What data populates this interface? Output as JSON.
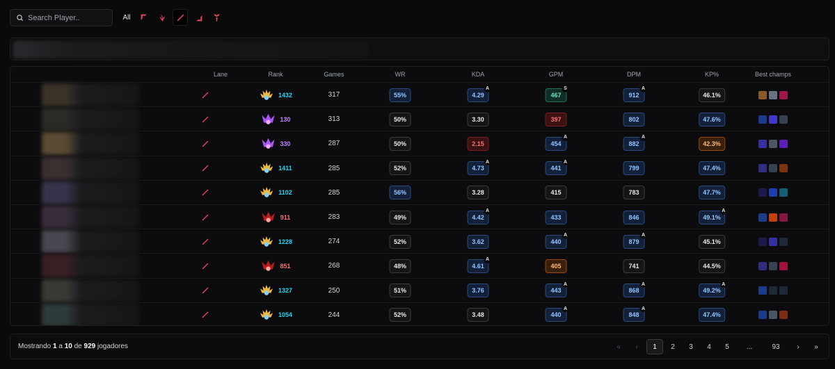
{
  "search": {
    "placeholder": "Search Player.."
  },
  "filters": {
    "all_label": "All",
    "lanes": [
      "top-lane-icon",
      "jungle-icon",
      "mid-lane-icon",
      "bot-lane-icon",
      "support-icon"
    ]
  },
  "colors": {
    "lane_accent": "#e0455b",
    "cyan_rank": "#22d3ee",
    "purple_rank": "#c084fc",
    "red_rank": "#f87171"
  },
  "table": {
    "headers": {
      "lane": "Lane",
      "rank": "Rank",
      "games": "Games",
      "wr": "WR",
      "kda": "KDA",
      "gpm": "GPM",
      "dpm": "DPM",
      "kp": "KP%",
      "champs": "Best champs"
    },
    "rows": [
      {
        "rank_tier": "challenger",
        "rank_lp": "1432",
        "games": "317",
        "wr": "55%",
        "wr_style": "blue",
        "kda": "4.29",
        "kda_style": "blue",
        "kda_grade": "A",
        "gpm": "467",
        "gpm_style": "green",
        "gpm_grade": "S",
        "dpm": "912",
        "dpm_style": "blue",
        "dpm_grade": "A",
        "kp": "46.1%",
        "kp_style": "",
        "kp_grade": ""
      },
      {
        "rank_tier": "master",
        "rank_lp": "130",
        "games": "313",
        "wr": "50%",
        "wr_style": "",
        "kda": "3.30",
        "kda_style": "",
        "kda_grade": "",
        "gpm": "397",
        "gpm_style": "red",
        "gpm_grade": "",
        "dpm": "802",
        "dpm_style": "blue",
        "dpm_grade": "",
        "kp": "47.6%",
        "kp_style": "blue",
        "kp_grade": ""
      },
      {
        "rank_tier": "master",
        "rank_lp": "330",
        "games": "287",
        "wr": "50%",
        "wr_style": "",
        "kda": "2.15",
        "kda_style": "red",
        "kda_grade": "",
        "gpm": "454",
        "gpm_style": "blue",
        "gpm_grade": "A",
        "dpm": "882",
        "dpm_style": "blue",
        "dpm_grade": "A",
        "kp": "42.3%",
        "kp_style": "orange",
        "kp_grade": ""
      },
      {
        "rank_tier": "challenger",
        "rank_lp": "1411",
        "games": "285",
        "wr": "52%",
        "wr_style": "",
        "kda": "4.73",
        "kda_style": "blue",
        "kda_grade": "A",
        "gpm": "441",
        "gpm_style": "blue",
        "gpm_grade": "A",
        "dpm": "799",
        "dpm_style": "blue",
        "dpm_grade": "",
        "kp": "47.4%",
        "kp_style": "blue",
        "kp_grade": ""
      },
      {
        "rank_tier": "challenger",
        "rank_lp": "1102",
        "games": "285",
        "wr": "56%",
        "wr_style": "blue",
        "kda": "3.28",
        "kda_style": "",
        "kda_grade": "",
        "gpm": "415",
        "gpm_style": "",
        "gpm_grade": "",
        "dpm": "783",
        "dpm_style": "",
        "dpm_grade": "",
        "kp": "47.7%",
        "kp_style": "blue",
        "kp_grade": ""
      },
      {
        "rank_tier": "grandmaster",
        "rank_lp": "911",
        "games": "283",
        "wr": "49%",
        "wr_style": "",
        "kda": "4.42",
        "kda_style": "blue",
        "kda_grade": "A",
        "gpm": "433",
        "gpm_style": "blue",
        "gpm_grade": "",
        "dpm": "846",
        "dpm_style": "blue",
        "dpm_grade": "",
        "kp": "49.1%",
        "kp_style": "blue",
        "kp_grade": "A"
      },
      {
        "rank_tier": "challenger",
        "rank_lp": "1228",
        "games": "274",
        "wr": "52%",
        "wr_style": "",
        "kda": "3.62",
        "kda_style": "blue",
        "kda_grade": "",
        "gpm": "440",
        "gpm_style": "blue",
        "gpm_grade": "A",
        "dpm": "879",
        "dpm_style": "blue",
        "dpm_grade": "A",
        "kp": "45.1%",
        "kp_style": "",
        "kp_grade": ""
      },
      {
        "rank_tier": "grandmaster",
        "rank_lp": "851",
        "games": "268",
        "wr": "48%",
        "wr_style": "",
        "kda": "4.61",
        "kda_style": "blue",
        "kda_grade": "A",
        "gpm": "405",
        "gpm_style": "orange",
        "gpm_grade": "",
        "dpm": "741",
        "dpm_style": "",
        "dpm_grade": "",
        "kp": "44.5%",
        "kp_style": "",
        "kp_grade": ""
      },
      {
        "rank_tier": "challenger",
        "rank_lp": "1327",
        "games": "250",
        "wr": "51%",
        "wr_style": "",
        "kda": "3.76",
        "kda_style": "blue",
        "kda_grade": "",
        "gpm": "443",
        "gpm_style": "blue",
        "gpm_grade": "A",
        "dpm": "868",
        "dpm_style": "blue",
        "dpm_grade": "A",
        "kp": "49.2%",
        "kp_style": "blue",
        "kp_grade": "A"
      },
      {
        "rank_tier": "challenger",
        "rank_lp": "1054",
        "games": "244",
        "wr": "52%",
        "wr_style": "",
        "kda": "3.48",
        "kda_style": "",
        "kda_grade": "",
        "gpm": "440",
        "gpm_style": "blue",
        "gpm_grade": "A",
        "dpm": "848",
        "dpm_style": "blue",
        "dpm_grade": "A",
        "kp": "47.4%",
        "kp_style": "blue",
        "kp_grade": ""
      }
    ]
  },
  "footer": {
    "showing_prefix": "Mostrando",
    "showing_from": "1",
    "showing_sep": "a",
    "showing_to": "10",
    "showing_of": "de",
    "showing_total": "929",
    "showing_suffix": "jogadores",
    "pages": [
      "1",
      "2",
      "3",
      "4",
      "5",
      "...",
      "93"
    ],
    "current_page": "1",
    "first_label": "«",
    "prev_label": "‹",
    "next_label": "›",
    "last_label": "»"
  }
}
